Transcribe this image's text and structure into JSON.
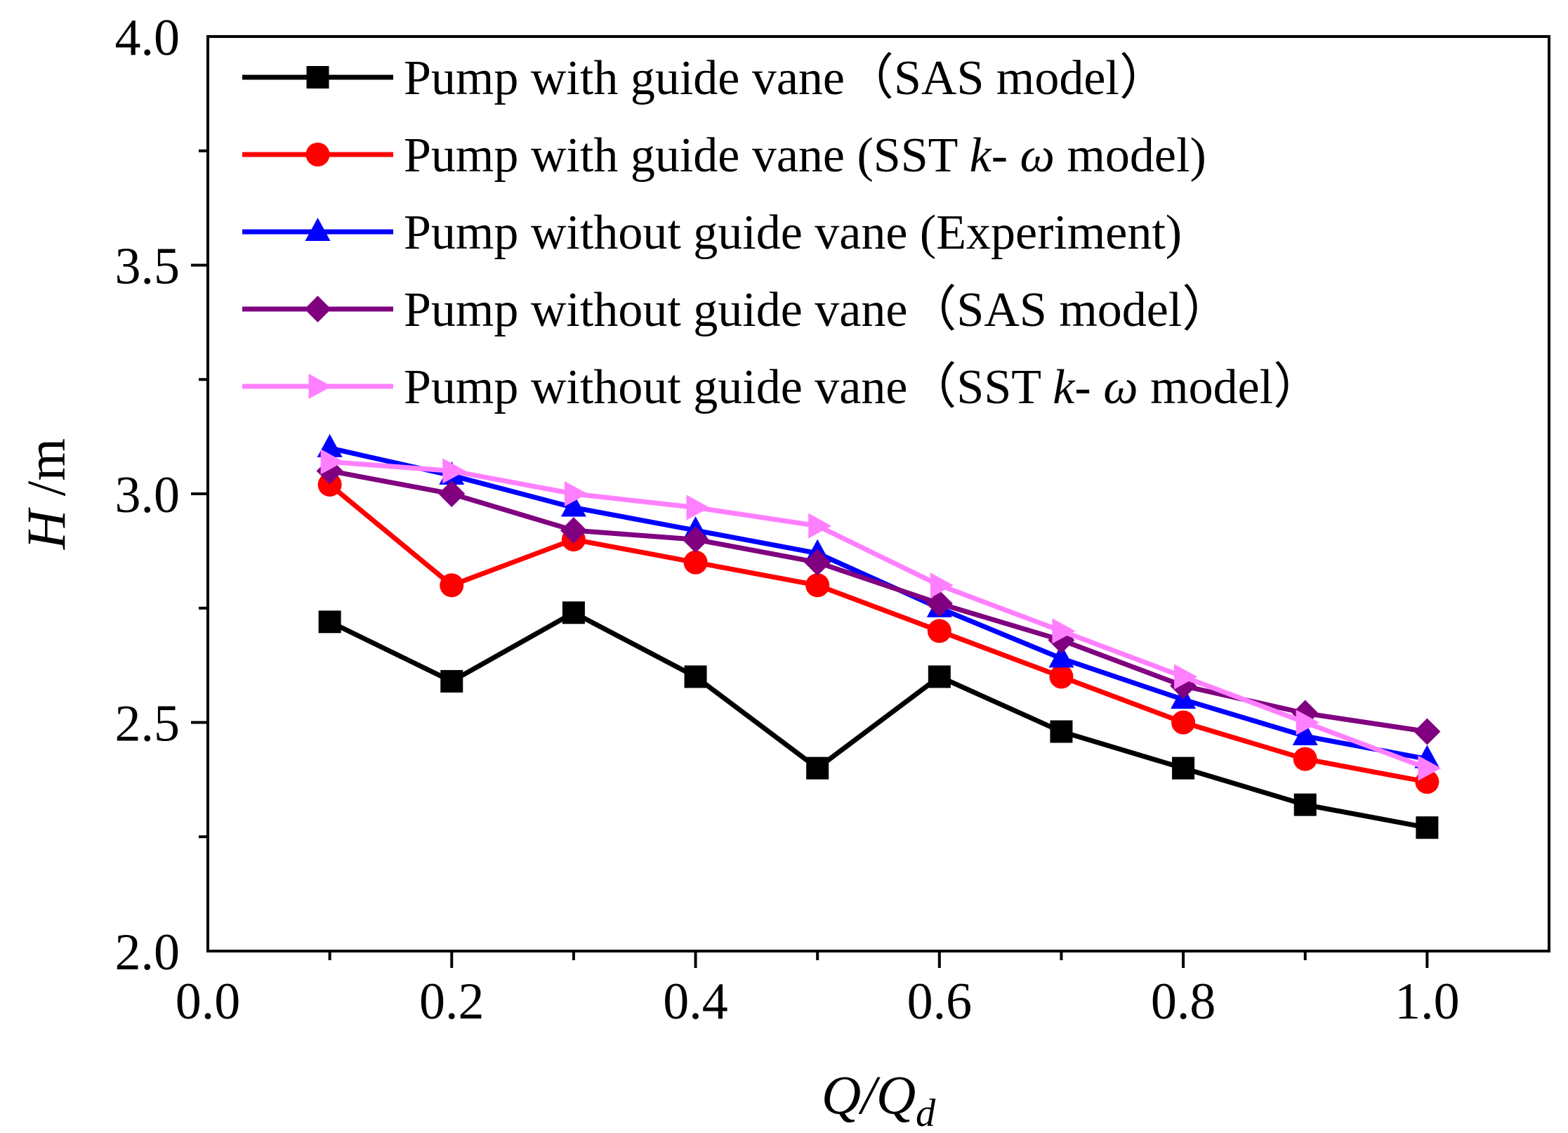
{
  "chart_data": {
    "type": "line",
    "xlabel": {
      "main": "Q/Q",
      "sub": "d"
    },
    "ylabel": {
      "main": "H",
      "unit": " /m"
    },
    "xlim": [
      0.0,
      1.1
    ],
    "ylim": [
      2.0,
      4.0
    ],
    "x_ticks": [
      0.0,
      0.2,
      0.4,
      0.6,
      0.8,
      1.0
    ],
    "x_tick_labels": [
      "0.0",
      "0.2",
      "0.4",
      "0.6",
      "0.8",
      "1.0"
    ],
    "y_ticks": [
      2.0,
      2.5,
      3.0,
      3.5,
      4.0
    ],
    "y_tick_labels": [
      "2.0",
      "2.5",
      "3.0",
      "3.5",
      "4.0"
    ],
    "legend_position": "top-left",
    "x": [
      0.1,
      0.2,
      0.3,
      0.4,
      0.5,
      0.6,
      0.7,
      0.8,
      0.9,
      1.0
    ],
    "series": [
      {
        "name": "Pump with guide vane（SAS model）",
        "legend_parts": [
          [
            "Pump with guide vane（SAS model）",
            false
          ]
        ],
        "color": "#000000",
        "marker": "square",
        "values": [
          2.72,
          2.59,
          2.74,
          2.6,
          2.4,
          2.6,
          2.48,
          2.4,
          2.32,
          2.27
        ]
      },
      {
        "name": "Pump with guide vane (SST k- ω model)",
        "legend_parts": [
          [
            "Pump with guide vane (SST ",
            false
          ],
          [
            "k",
            true
          ],
          [
            "- ",
            false
          ],
          [
            "ω",
            true
          ],
          [
            " model)",
            false
          ]
        ],
        "color": "#ff0000",
        "marker": "circle",
        "values": [
          3.02,
          2.8,
          2.9,
          2.85,
          2.8,
          2.7,
          2.6,
          2.5,
          2.42,
          2.37
        ]
      },
      {
        "name": "Pump without guide vane (Experiment)",
        "legend_parts": [
          [
            "Pump without guide vane (Experiment)",
            false
          ]
        ],
        "color": "#0000ff",
        "marker": "triangle-up",
        "values": [
          3.1,
          3.04,
          2.97,
          2.92,
          2.87,
          2.75,
          2.64,
          2.55,
          2.47,
          2.42
        ]
      },
      {
        "name": "Pump without guide vane（SAS model）",
        "legend_parts": [
          [
            "Pump without guide vane（SAS model）",
            false
          ]
        ],
        "color": "#800080",
        "marker": "diamond",
        "values": [
          3.05,
          3.0,
          2.92,
          2.9,
          2.85,
          2.76,
          2.68,
          2.58,
          2.52,
          2.48
        ]
      },
      {
        "name": "Pump without guide vane（SST k- ω model）",
        "legend_parts": [
          [
            "Pump without guide vane（SST ",
            false
          ],
          [
            "k",
            true
          ],
          [
            "- ",
            false
          ],
          [
            "ω",
            true
          ],
          [
            " model）",
            false
          ]
        ],
        "color": "#ff80ff",
        "marker": "triangle-right",
        "values": [
          3.07,
          3.05,
          3.0,
          2.97,
          2.93,
          2.8,
          2.7,
          2.6,
          2.5,
          2.4
        ]
      }
    ]
  }
}
